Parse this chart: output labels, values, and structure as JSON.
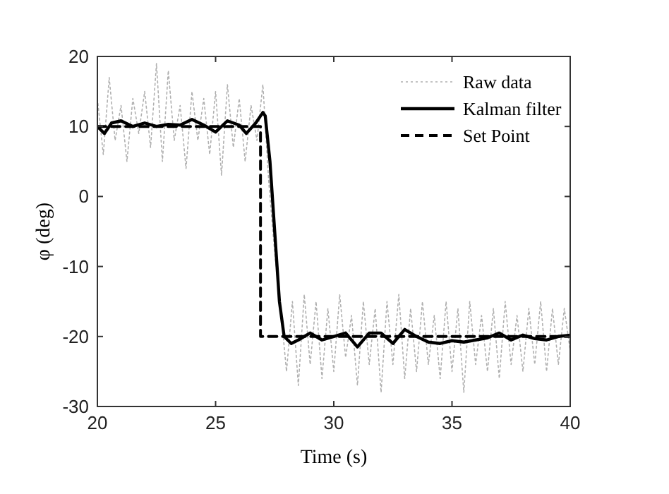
{
  "chart_data": {
    "type": "line",
    "xlabel": "Time (s)",
    "ylabel": "φ (deg)",
    "xlim": [
      20,
      40
    ],
    "ylim": [
      -30,
      20
    ],
    "xticks": [
      20,
      25,
      30,
      35,
      40
    ],
    "yticks": [
      -30,
      -20,
      -10,
      0,
      10,
      20
    ],
    "grid": false,
    "legend": "top right",
    "marker": "none",
    "series": [
      {
        "name": "Raw data",
        "color": "#b0b0b0",
        "line_style": "dotted",
        "x": [
          20,
          20.25,
          20.5,
          20.75,
          21,
          21.25,
          21.5,
          21.75,
          22,
          22.25,
          22.5,
          22.75,
          23,
          23.25,
          23.5,
          23.75,
          24,
          24.25,
          24.5,
          24.75,
          25,
          25.25,
          25.5,
          25.75,
          26,
          26.25,
          26.5,
          26.75,
          27,
          27.25,
          27.5,
          27.75,
          28,
          28.25,
          28.5,
          28.75,
          29,
          29.25,
          29.5,
          29.75,
          30,
          30.25,
          30.5,
          30.75,
          31,
          31.25,
          31.5,
          31.75,
          32,
          32.25,
          32.5,
          32.75,
          33,
          33.25,
          33.5,
          33.75,
          34,
          34.25,
          34.5,
          34.75,
          35,
          35.25,
          35.5,
          35.75,
          36,
          36.25,
          36.5,
          36.75,
          37,
          37.25,
          37.5,
          37.75,
          38,
          38.25,
          38.5,
          38.75,
          39,
          39.25,
          39.5,
          39.75,
          40
        ],
        "values": [
          14,
          6,
          17,
          8,
          13,
          5,
          14,
          9,
          15,
          7,
          19,
          5,
          18,
          8,
          13,
          4,
          15,
          8,
          14,
          6,
          15,
          3,
          16,
          7,
          14,
          5,
          13,
          8,
          16,
          2,
          -8,
          -16,
          -25,
          -15,
          -27,
          -14,
          -24,
          -15,
          -26,
          -16,
          -25,
          -14,
          -23,
          -17,
          -27,
          -15,
          -24,
          -16,
          -28,
          -15,
          -24,
          -14,
          -26,
          -16,
          -25,
          -15,
          -24,
          -17,
          -26,
          -15,
          -25,
          -16,
          -28,
          -15,
          -24,
          -17,
          -25,
          -16,
          -26,
          -15,
          -24,
          -17,
          -25,
          -16,
          -24,
          -15,
          -25,
          -16,
          -24,
          -16,
          -22
        ]
      },
      {
        "name": "Kalman filter",
        "color": "#000000",
        "line_style": "solid",
        "x": [
          20,
          20.3,
          20.6,
          21,
          21.5,
          22,
          22.5,
          23,
          23.5,
          24,
          24.5,
          25,
          25.5,
          26,
          26.3,
          26.7,
          27,
          27.1,
          27.3,
          27.5,
          27.7,
          27.9,
          28.2,
          28.5,
          29,
          29.5,
          30,
          30.5,
          31,
          31.5,
          32,
          32.5,
          33,
          33.5,
          34,
          34.5,
          35,
          35.5,
          36,
          36.5,
          37,
          37.5,
          38,
          38.5,
          39,
          39.5,
          40
        ],
        "values": [
          10,
          9,
          10.5,
          10.8,
          10,
          10.5,
          10,
          10.3,
          10.2,
          11,
          10.2,
          9.2,
          10.8,
          10.2,
          9,
          10.5,
          12,
          11.5,
          5,
          -5,
          -15,
          -20,
          -21,
          -20.5,
          -19.5,
          -20.5,
          -20,
          -19.5,
          -21.5,
          -19.5,
          -19.5,
          -21,
          -19,
          -20,
          -20.8,
          -21,
          -20.6,
          -20.8,
          -20.5,
          -20.2,
          -19.5,
          -20.5,
          -19.8,
          -20.3,
          -20.5,
          -20,
          -19.8
        ]
      },
      {
        "name": "Set Point",
        "color": "#000000",
        "line_style": "dashed",
        "x": [
          20,
          26.9,
          26.9,
          40
        ],
        "values": [
          10,
          10,
          -20,
          -20
        ]
      }
    ]
  }
}
